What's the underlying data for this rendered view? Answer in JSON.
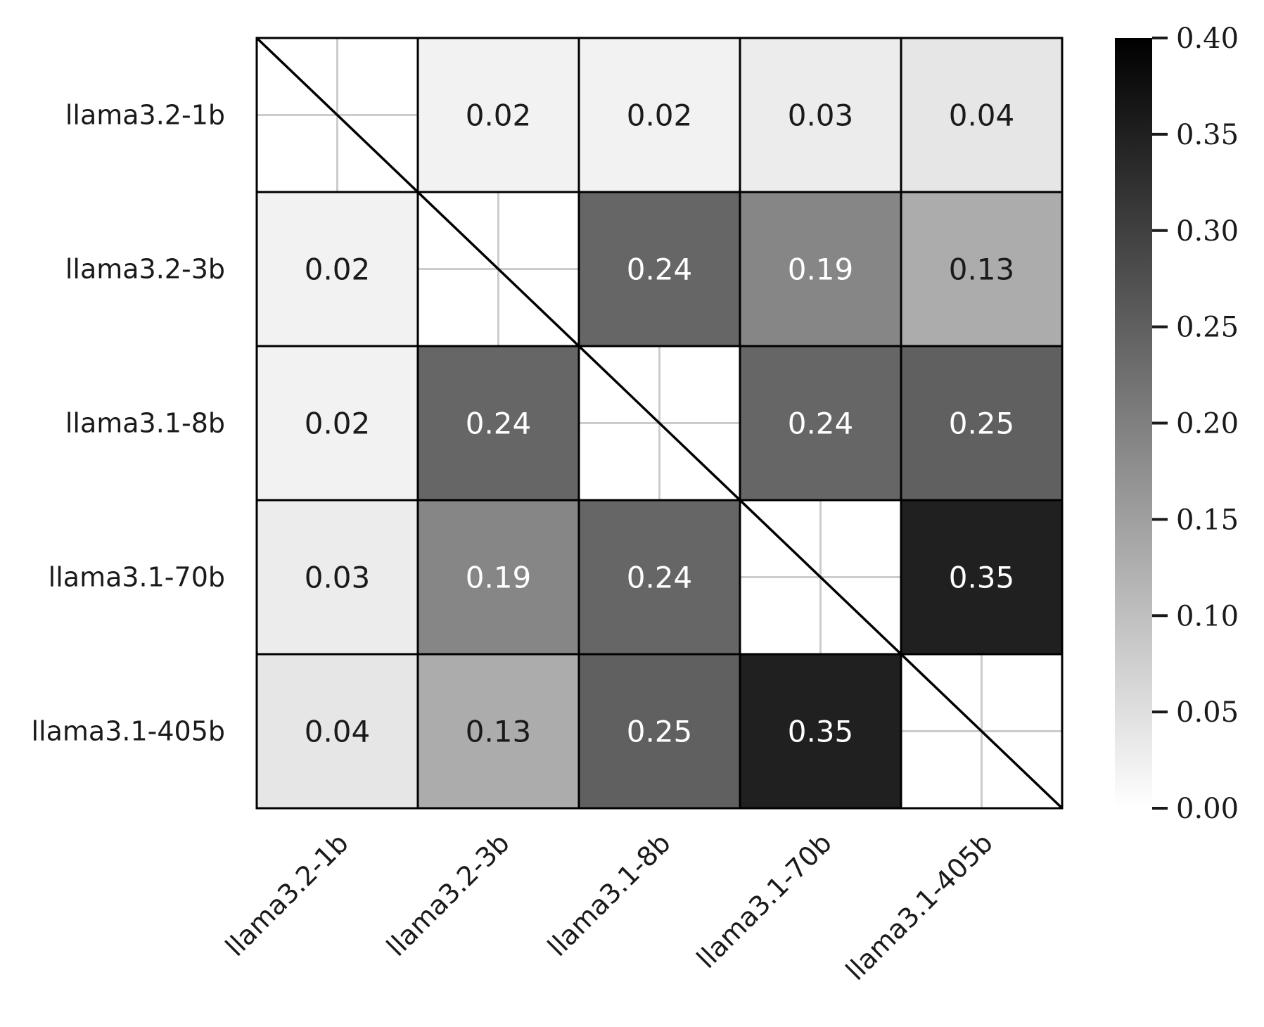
{
  "chart_data": {
    "type": "heatmap",
    "title": "",
    "xlabel": "",
    "ylabel": "",
    "rows": [
      "llama3.2-1b",
      "llama3.2-3b",
      "llama3.1-8b",
      "llama3.1-70b",
      "llama3.1-405b"
    ],
    "columns": [
      "llama3.2-1b",
      "llama3.2-3b",
      "llama3.1-8b",
      "llama3.1-70b",
      "llama3.1-405b"
    ],
    "values": [
      [
        null,
        0.02,
        0.02,
        0.03,
        0.04
      ],
      [
        0.02,
        null,
        0.24,
        0.19,
        0.13
      ],
      [
        0.02,
        0.24,
        null,
        0.24,
        0.25
      ],
      [
        0.03,
        0.19,
        0.24,
        null,
        0.35
      ],
      [
        0.04,
        0.13,
        0.25,
        0.35,
        null
      ]
    ],
    "value_labels": [
      [
        "",
        "0.02",
        "0.02",
        "0.03",
        "0.04"
      ],
      [
        "0.02",
        "",
        "0.24",
        "0.19",
        "0.13"
      ],
      [
        "0.02",
        "0.24",
        "",
        "0.24",
        "0.25"
      ],
      [
        "0.03",
        "0.19",
        "0.24",
        "",
        "0.35"
      ],
      [
        "0.04",
        "0.13",
        "0.25",
        "0.35",
        ""
      ]
    ],
    "diagonal": "blank, crossed by a diagonal line",
    "colormap": "greys",
    "color_low": "#ffffff",
    "color_high": "#000000",
    "vmin": 0.0,
    "vmax": 0.4,
    "colorbar": {
      "position": "right",
      "ticks": [
        0.0,
        0.05,
        0.1,
        0.15,
        0.2,
        0.25,
        0.3,
        0.35,
        0.4
      ],
      "tick_labels": [
        "0.00",
        "0.05",
        "0.10",
        "0.15",
        "0.20",
        "0.25",
        "0.30",
        "0.35",
        "0.40"
      ]
    },
    "x_tick_rotation": "45 degrees",
    "grid": true,
    "text_color_dark": "#1a1a1a",
    "text_color_light": "#ffffff",
    "cell_border_color": "#000000",
    "grid_color": "#cccccc"
  }
}
